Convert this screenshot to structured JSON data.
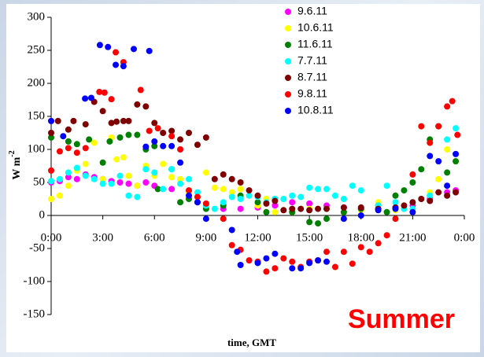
{
  "chart_data": {
    "type": "scatter",
    "y_label": "W m",
    "y_label_superscript": "-2",
    "x_label": "time, GMT",
    "annotation": "Summer",
    "xlim": [
      0,
      24
    ],
    "ylim": [
      -150,
      300
    ],
    "xticks": [
      {
        "value": 0,
        "label": "0:00"
      },
      {
        "value": 3,
        "label": "3:00"
      },
      {
        "value": 6,
        "label": "6:00"
      },
      {
        "value": 9,
        "label": "9:00"
      },
      {
        "value": 12,
        "label": "12:00"
      },
      {
        "value": 15,
        "label": "15:00"
      },
      {
        "value": 18,
        "label": "18:00"
      },
      {
        "value": 21,
        "label": "21:00"
      },
      {
        "value": 24,
        "label": "0:00"
      }
    ],
    "yticks": [
      -150,
      -100,
      -50,
      0,
      50,
      100,
      150,
      200,
      250,
      300
    ],
    "legend": "top-right",
    "series": [
      {
        "name": "9.6.11",
        "color": "#ff00ff",
        "x": [
          0,
          0.5,
          1,
          1.5,
          2,
          2.5,
          3,
          3.5,
          4,
          4.5,
          5,
          5.5,
          6,
          7,
          8,
          9,
          10,
          11,
          12,
          13,
          14,
          15,
          16,
          17,
          18,
          19,
          20,
          21,
          22,
          23,
          23.5
        ],
        "values": [
          50,
          52,
          58,
          55,
          62,
          58,
          55,
          52,
          50,
          48,
          45,
          50,
          45,
          40,
          35,
          15,
          10,
          10,
          12,
          15,
          20,
          18,
          15,
          12,
          10,
          10,
          12,
          15,
          25,
          35,
          38
        ]
      },
      {
        "name": "10.6.11",
        "color": "#ffff00",
        "x": [
          0,
          0.5,
          1,
          1.5,
          2,
          2.5,
          3,
          3.5,
          3.8,
          4.2,
          4.5,
          5,
          5.5,
          6,
          6.5,
          7,
          7.5,
          8,
          8.5,
          9,
          9.5,
          10,
          10.5,
          11,
          11.5,
          12,
          12.5,
          13,
          14,
          15,
          16,
          17,
          18,
          19,
          20,
          21,
          22,
          22.5,
          23,
          23.5
        ],
        "values": [
          25,
          30,
          45,
          68,
          78,
          110,
          55,
          118,
          85,
          88,
          60,
          45,
          75,
          60,
          78,
          58,
          55,
          35,
          28,
          65,
          42,
          40,
          35,
          40,
          30,
          15,
          25,
          5,
          5,
          10,
          10,
          5,
          8,
          20,
          8,
          5,
          35,
          55,
          100,
          82
        ]
      },
      {
        "name": "11.6.11",
        "color": "#008000",
        "x": [
          0,
          1,
          1.5,
          2.2,
          3,
          3.4,
          4,
          4.5,
          5,
          5.5,
          6,
          6.2,
          7,
          7.5,
          8,
          8.5,
          9,
          10,
          11,
          12,
          12.5,
          13,
          14,
          15,
          15.5,
          16,
          17,
          18,
          19,
          19.5,
          20,
          20.5,
          21,
          21.5,
          22,
          22.5,
          23,
          23.5
        ],
        "values": [
          118,
          112,
          108,
          115,
          80,
          112,
          118,
          122,
          122,
          100,
          105,
          40,
          70,
          20,
          25,
          20,
          10,
          15,
          30,
          20,
          5,
          25,
          5,
          -10,
          -12,
          -5,
          5,
          10,
          15,
          5,
          30,
          38,
          50,
          70,
          115,
          135,
          65,
          82
        ]
      },
      {
        "name": "7.7.11",
        "color": "#00ffff",
        "x": [
          0,
          0.5,
          1,
          1.5,
          2,
          2.5,
          3,
          3.5,
          4,
          4.5,
          5,
          5.5,
          6,
          6.5,
          7,
          7.5,
          8,
          8.5,
          9,
          9.5,
          10,
          10.5,
          11,
          11.5,
          12,
          12.5,
          13,
          13.5,
          14,
          14.5,
          15,
          15.5,
          16,
          16.5,
          17,
          17.5,
          18,
          19,
          19.5,
          20,
          20.5,
          21,
          22,
          23,
          23.5
        ],
        "values": [
          52,
          55,
          65,
          72,
          60,
          55,
          48,
          48,
          60,
          30,
          28,
          70,
          65,
          40,
          70,
          48,
          55,
          35,
          15,
          10,
          20,
          28,
          25,
          30,
          28,
          20,
          25,
          25,
          30,
          28,
          42,
          40,
          40,
          30,
          25,
          45,
          38,
          15,
          45,
          20,
          10,
          10,
          30,
          115,
          132
        ]
      },
      {
        "name": "8.7.11",
        "color": "#800000",
        "x": [
          0,
          0.4,
          1,
          1.3,
          2,
          2.5,
          3,
          3.5,
          3.8,
          4.2,
          4.5,
          5,
          5.5,
          6,
          6.5,
          7,
          7.5,
          8,
          8.5,
          9,
          9.5,
          10,
          10.5,
          11,
          11.5,
          12,
          12.5,
          13,
          13.5,
          14,
          14.5,
          15,
          15.5,
          16,
          17,
          18,
          19,
          20,
          20.5,
          21,
          21.5,
          22,
          22.5,
          23,
          23.5
        ],
        "values": [
          125,
          143,
          130,
          143,
          138,
          172,
          158,
          140,
          142,
          143,
          143,
          168,
          165,
          140,
          125,
          128,
          115,
          125,
          107,
          118,
          55,
          62,
          55,
          50,
          38,
          30,
          18,
          22,
          8,
          10,
          10,
          8,
          10,
          10,
          12,
          12,
          10,
          12,
          15,
          20,
          25,
          22,
          35,
          30,
          35
        ]
      },
      {
        "name": "9.8.11",
        "color": "#ff0000",
        "x": [
          0,
          0.5,
          1,
          1.5,
          2,
          2.8,
          3.1,
          3.5,
          3.75,
          4.2,
          5.2,
          5.7,
          6.2,
          7,
          7.5,
          8,
          8.5,
          9,
          10,
          10.5,
          11,
          11.5,
          12,
          12.5,
          13,
          13.5,
          14,
          14.5,
          15,
          15.5,
          16,
          16.5,
          17,
          17.5,
          18,
          18.5,
          19,
          19.5,
          20,
          21,
          21.5,
          22,
          22.5,
          23,
          23.3,
          23.6
        ],
        "values": [
          68,
          97,
          102,
          95,
          102,
          187,
          186,
          176,
          247,
          232,
          190,
          128,
          132,
          120,
          100,
          38,
          28,
          18,
          -5,
          -45,
          -52,
          -68,
          -70,
          -85,
          -80,
          -65,
          -70,
          -78,
          -70,
          -68,
          -55,
          -78,
          -55,
          -73,
          -48,
          -55,
          -42,
          -30,
          -5,
          62,
          135,
          110,
          135,
          165,
          173,
          122
        ]
      },
      {
        "name": "10.8.11",
        "color": "#0000ff",
        "x": [
          0,
          0.7,
          1.97,
          2.33,
          2.83,
          3.3,
          3.75,
          4.2,
          4.8,
          5.7,
          5.5,
          6,
          6.5,
          7,
          7.5,
          8,
          8.5,
          9,
          10.5,
          10.8,
          11,
          12,
          12.5,
          13,
          14,
          14.5,
          15,
          15.5,
          16,
          17,
          18,
          19,
          20,
          21,
          22,
          22.5,
          23,
          23.5
        ],
        "values": [
          143,
          120,
          177,
          178,
          258,
          255,
          228,
          226,
          252,
          249,
          104,
          112,
          105,
          105,
          80,
          30,
          20,
          -5,
          -22,
          -55,
          -75,
          -72,
          -65,
          -58,
          -80,
          -80,
          -72,
          -68,
          -70,
          -5,
          0,
          8,
          10,
          5,
          90,
          82,
          45,
          93
        ]
      }
    ]
  }
}
